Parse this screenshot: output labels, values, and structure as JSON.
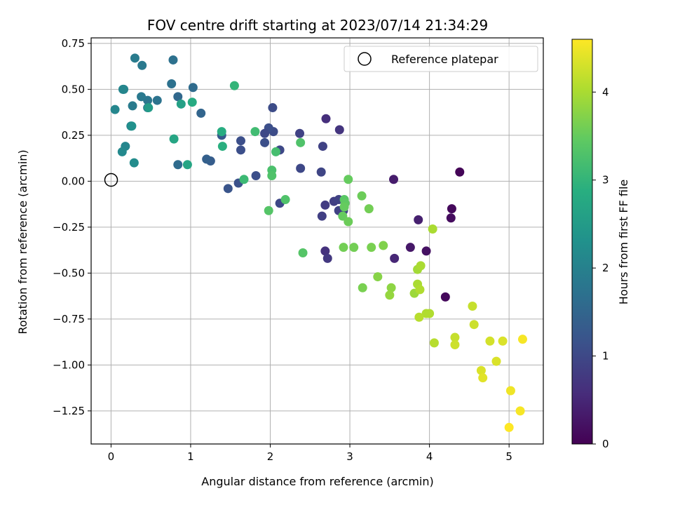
{
  "chart_data": {
    "type": "scatter",
    "title": "FOV centre drift starting at 2023/07/14 21:34:29",
    "xlabel": "Angular distance from reference (arcmin)",
    "ylabel": "Rotation from reference (arcmin)",
    "colorbar_label": "Hours from first FF file",
    "xlim": [
      -0.25,
      5.43
    ],
    "ylim": [
      -1.43,
      0.78
    ],
    "clim": [
      0,
      4.6
    ],
    "xticks": [
      0,
      1,
      2,
      3,
      4,
      5
    ],
    "xtick_labels": [
      "0",
      "1",
      "2",
      "3",
      "4",
      "5"
    ],
    "yticks": [
      -1.25,
      -1.0,
      -0.75,
      -0.5,
      -0.25,
      0.0,
      0.25,
      0.5,
      0.75
    ],
    "ytick_labels": [
      "−1.25",
      "−1.00",
      "−0.75",
      "−0.50",
      "−0.25",
      "0.00",
      "0.25",
      "0.50",
      "0.75"
    ],
    "cticks": [
      0,
      1,
      2,
      3,
      4
    ],
    "ctick_labels": [
      "0",
      "1",
      "2",
      "3",
      "4"
    ],
    "colormap": "viridis",
    "grid": true,
    "legend_position": "top-right",
    "legend_entries": [
      "Reference platepar"
    ],
    "reference_point": {
      "x": 0,
      "y": 0
    },
    "points": [
      {
        "x": 4.38,
        "y": 0.05,
        "c": 0.05
      },
      {
        "x": 4.28,
        "y": -0.15,
        "c": 0.1
      },
      {
        "x": 4.27,
        "y": -0.2,
        "c": 0.15
      },
      {
        "x": 4.2,
        "y": -0.63,
        "c": 0.1
      },
      {
        "x": 3.96,
        "y": -0.38,
        "c": 0.2
      },
      {
        "x": 3.76,
        "y": -0.36,
        "c": 0.3
      },
      {
        "x": 3.55,
        "y": 0.01,
        "c": 0.35
      },
      {
        "x": 3.86,
        "y": -0.21,
        "c": 0.4
      },
      {
        "x": 3.56,
        "y": -0.42,
        "c": 0.5
      },
      {
        "x": 2.7,
        "y": 0.34,
        "c": 0.6
      },
      {
        "x": 2.87,
        "y": 0.28,
        "c": 0.7
      },
      {
        "x": 2.69,
        "y": -0.38,
        "c": 0.65
      },
      {
        "x": 2.72,
        "y": -0.42,
        "c": 0.75
      },
      {
        "x": 2.69,
        "y": -0.13,
        "c": 0.8
      },
      {
        "x": 2.8,
        "y": -0.11,
        "c": 0.85
      },
      {
        "x": 2.86,
        "y": -0.1,
        "c": 0.9
      },
      {
        "x": 2.92,
        "y": -0.16,
        "c": 0.95
      },
      {
        "x": 2.86,
        "y": -0.16,
        "c": 0.9
      },
      {
        "x": 2.65,
        "y": -0.19,
        "c": 0.85
      },
      {
        "x": 2.66,
        "y": 0.19,
        "c": 0.9
      },
      {
        "x": 2.64,
        "y": 0.05,
        "c": 0.95
      },
      {
        "x": 2.37,
        "y": 0.26,
        "c": 0.9
      },
      {
        "x": 2.38,
        "y": 0.07,
        "c": 1.0
      },
      {
        "x": 2.12,
        "y": -0.12,
        "c": 1.0
      },
      {
        "x": 2.12,
        "y": 0.17,
        "c": 1.0
      },
      {
        "x": 2.04,
        "y": 0.27,
        "c": 1.05
      },
      {
        "x": 2.03,
        "y": 0.4,
        "c": 1.05
      },
      {
        "x": 1.98,
        "y": 0.29,
        "c": 1.1
      },
      {
        "x": 1.93,
        "y": 0.26,
        "c": 1.0
      },
      {
        "x": 1.93,
        "y": 0.21,
        "c": 1.1
      },
      {
        "x": 1.82,
        "y": 0.03,
        "c": 1.1
      },
      {
        "x": 1.63,
        "y": 0.22,
        "c": 1.1
      },
      {
        "x": 1.63,
        "y": 0.17,
        "c": 1.1
      },
      {
        "x": 1.6,
        "y": -0.01,
        "c": 1.15
      },
      {
        "x": 1.47,
        "y": -0.04,
        "c": 1.2
      },
      {
        "x": 1.39,
        "y": 0.25,
        "c": 1.3
      },
      {
        "x": 1.25,
        "y": 0.11,
        "c": 1.35
      },
      {
        "x": 1.2,
        "y": 0.12,
        "c": 1.4
      },
      {
        "x": 1.13,
        "y": 0.37,
        "c": 1.5
      },
      {
        "x": 1.03,
        "y": 0.51,
        "c": 1.6
      },
      {
        "x": 0.84,
        "y": 0.46,
        "c": 1.55
      },
      {
        "x": 0.84,
        "y": 0.09,
        "c": 1.6
      },
      {
        "x": 0.78,
        "y": 0.66,
        "c": 1.7
      },
      {
        "x": 0.76,
        "y": 0.53,
        "c": 1.7
      },
      {
        "x": 0.58,
        "y": 0.44,
        "c": 1.75
      },
      {
        "x": 0.46,
        "y": 0.44,
        "c": 1.8
      },
      {
        "x": 0.46,
        "y": 0.4,
        "c": 1.8
      },
      {
        "x": 0.38,
        "y": 0.46,
        "c": 1.85
      },
      {
        "x": 0.39,
        "y": 0.63,
        "c": 1.85
      },
      {
        "x": 0.3,
        "y": 0.67,
        "c": 1.9
      },
      {
        "x": 0.27,
        "y": 0.41,
        "c": 1.9
      },
      {
        "x": 0.25,
        "y": 0.3,
        "c": 2.0
      },
      {
        "x": 0.16,
        "y": 0.5,
        "c": 2.0
      },
      {
        "x": 0.15,
        "y": 0.5,
        "c": 2.1
      },
      {
        "x": 0.05,
        "y": 0.39,
        "c": 2.1
      },
      {
        "x": 0.18,
        "y": 0.19,
        "c": 2.1
      },
      {
        "x": 0.14,
        "y": 0.16,
        "c": 2.15
      },
      {
        "x": 0.29,
        "y": 0.1,
        "c": 2.2
      },
      {
        "x": 0.26,
        "y": 0.3,
        "c": 2.3
      },
      {
        "x": 0.47,
        "y": 0.4,
        "c": 2.5
      },
      {
        "x": 0.88,
        "y": 0.42,
        "c": 2.6
      },
      {
        "x": 0.79,
        "y": 0.23,
        "c": 2.7
      },
      {
        "x": 0.96,
        "y": 0.09,
        "c": 2.7
      },
      {
        "x": 1.02,
        "y": 0.43,
        "c": 2.8
      },
      {
        "x": 1.39,
        "y": 0.27,
        "c": 2.85
      },
      {
        "x": 1.4,
        "y": 0.19,
        "c": 2.9
      },
      {
        "x": 1.55,
        "y": 0.52,
        "c": 3.0
      },
      {
        "x": 1.67,
        "y": 0.01,
        "c": 3.1
      },
      {
        "x": 1.81,
        "y": 0.27,
        "c": 3.15
      },
      {
        "x": 2.07,
        "y": 0.16,
        "c": 3.2
      },
      {
        "x": 2.02,
        "y": 0.06,
        "c": 3.25
      },
      {
        "x": 2.02,
        "y": 0.03,
        "c": 3.3
      },
      {
        "x": 1.98,
        "y": -0.16,
        "c": 3.35
      },
      {
        "x": 2.19,
        "y": -0.1,
        "c": 3.3
      },
      {
        "x": 2.38,
        "y": 0.21,
        "c": 3.3
      },
      {
        "x": 2.41,
        "y": -0.39,
        "c": 3.35
      },
      {
        "x": 2.93,
        "y": -0.1,
        "c": 3.4
      },
      {
        "x": 2.94,
        "y": -0.12,
        "c": 3.45
      },
      {
        "x": 2.93,
        "y": -0.14,
        "c": 3.5
      },
      {
        "x": 2.91,
        "y": -0.19,
        "c": 3.5
      },
      {
        "x": 2.98,
        "y": -0.22,
        "c": 3.55
      },
      {
        "x": 2.98,
        "y": 0.01,
        "c": 3.5
      },
      {
        "x": 3.15,
        "y": -0.08,
        "c": 3.55
      },
      {
        "x": 3.24,
        "y": -0.15,
        "c": 3.6
      },
      {
        "x": 2.92,
        "y": -0.36,
        "c": 3.6
      },
      {
        "x": 3.05,
        "y": -0.36,
        "c": 3.6
      },
      {
        "x": 3.27,
        "y": -0.36,
        "c": 3.65
      },
      {
        "x": 3.42,
        "y": -0.35,
        "c": 3.7
      },
      {
        "x": 3.16,
        "y": -0.58,
        "c": 3.65
      },
      {
        "x": 3.35,
        "y": -0.52,
        "c": 3.75
      },
      {
        "x": 3.52,
        "y": -0.58,
        "c": 3.8
      },
      {
        "x": 3.5,
        "y": -0.62,
        "c": 3.85
      },
      {
        "x": 3.81,
        "y": -0.61,
        "c": 3.9
      },
      {
        "x": 3.85,
        "y": -0.48,
        "c": 3.95
      },
      {
        "x": 3.89,
        "y": -0.46,
        "c": 4.0
      },
      {
        "x": 3.85,
        "y": -0.56,
        "c": 4.0
      },
      {
        "x": 3.88,
        "y": -0.59,
        "c": 4.05
      },
      {
        "x": 3.96,
        "y": -0.72,
        "c": 4.05
      },
      {
        "x": 4.0,
        "y": -0.72,
        "c": 4.05
      },
      {
        "x": 3.87,
        "y": -0.74,
        "c": 4.1
      },
      {
        "x": 4.04,
        "y": -0.26,
        "c": 4.0
      },
      {
        "x": 4.06,
        "y": -0.88,
        "c": 4.1
      },
      {
        "x": 4.32,
        "y": -0.85,
        "c": 4.2
      },
      {
        "x": 4.32,
        "y": -0.89,
        "c": 4.25
      },
      {
        "x": 4.54,
        "y": -0.68,
        "c": 4.2
      },
      {
        "x": 4.56,
        "y": -0.78,
        "c": 4.25
      },
      {
        "x": 4.76,
        "y": -0.87,
        "c": 4.3
      },
      {
        "x": 4.92,
        "y": -0.87,
        "c": 4.35
      },
      {
        "x": 4.84,
        "y": -0.98,
        "c": 4.35
      },
      {
        "x": 4.65,
        "y": -1.03,
        "c": 4.35
      },
      {
        "x": 4.67,
        "y": -1.07,
        "c": 4.4
      },
      {
        "x": 5.17,
        "y": -0.86,
        "c": 4.55
      },
      {
        "x": 5.02,
        "y": -1.14,
        "c": 4.5
      },
      {
        "x": 5.14,
        "y": -1.25,
        "c": 4.55
      },
      {
        "x": 5.0,
        "y": -1.34,
        "c": 4.6
      }
    ]
  }
}
